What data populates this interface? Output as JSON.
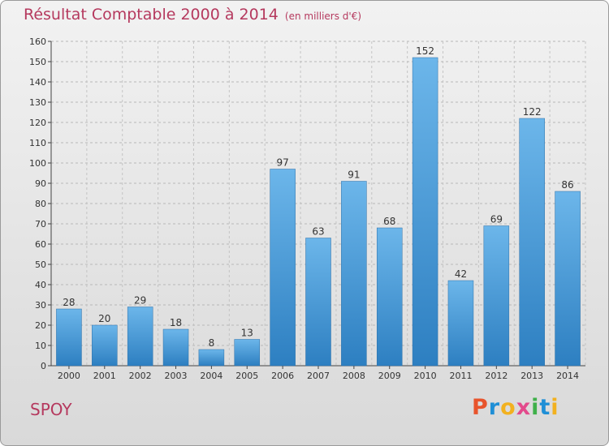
{
  "header": {
    "title": "Résultat Comptable 2000 à 2014",
    "subtitle": "(en milliers d'€)"
  },
  "footer": {
    "city": "SPOY",
    "logo": "Proxiti",
    "logo_colors": [
      "#e8542c",
      "#1f8fd6",
      "#f2b11f",
      "#e34a8c",
      "#3fb04a",
      "#1f8fd6",
      "#f2b11f"
    ]
  },
  "colors": {
    "bar_top": "#6cb6ea",
    "bar_bottom": "#2d7fc1",
    "accent": "#b5395e"
  },
  "chart_data": {
    "type": "bar",
    "title": "Résultat Comptable 2000 à 2014",
    "subtitle": "(en milliers d'€)",
    "xlabel": "",
    "ylabel": "",
    "categories": [
      "2000",
      "2001",
      "2002",
      "2003",
      "2004",
      "2005",
      "2006",
      "2007",
      "2008",
      "2009",
      "2010",
      "2011",
      "2012",
      "2013",
      "2014"
    ],
    "values": [
      28,
      20,
      29,
      18,
      8,
      13,
      97,
      63,
      91,
      68,
      152,
      42,
      69,
      122,
      86
    ],
    "ylim": [
      0,
      160
    ],
    "yticks": [
      0,
      10,
      20,
      30,
      40,
      50,
      60,
      70,
      80,
      90,
      100,
      110,
      120,
      130,
      140,
      150,
      160
    ],
    "grid": true
  }
}
